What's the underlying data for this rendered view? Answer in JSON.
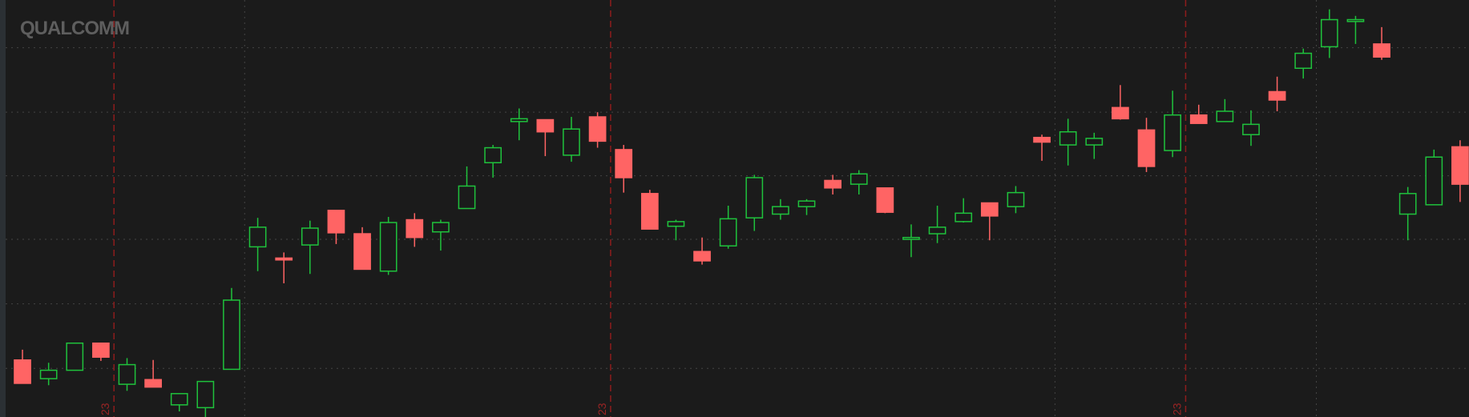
{
  "chart_data": {
    "type": "candlestick",
    "logo": "QUALCOMM",
    "up_color": "#1fc23c",
    "down_color": "#ff6464",
    "open": [
      61,
      41,
      50,
      79,
      35,
      40,
      13,
      10,
      51,
      182,
      170,
      184,
      221,
      196,
      156,
      211,
      198,
      223,
      272,
      316,
      318,
      280,
      321,
      286,
      239,
      204,
      177,
      183,
      213,
      217,
      225,
      253,
      249,
      245,
      190,
      196,
      209,
      229,
      225,
      299,
      291,
      291,
      331,
      307,
      285,
      323,
      316,
      302,
      348,
      373,
      396,
      423,
      399,
      217,
      227,
      289
    ],
    "high": [
      72,
      58,
      79,
      79,
      63,
      61,
      25,
      38,
      138,
      213,
      176,
      210,
      221,
      203,
      214,
      218,
      211,
      268,
      291,
      330,
      318,
      321,
      326,
      291,
      243,
      211,
      192,
      226,
      259,
      233,
      233,
      259,
      264,
      245,
      206,
      226,
      234,
      229,
      247,
      302,
      319,
      304,
      355,
      320,
      349,
      334,
      340,
      328,
      364,
      394,
      436,
      429,
      417,
      246,
      286,
      296
    ],
    "low": [
      36,
      34,
      50,
      60,
      28,
      32,
      6,
      0,
      51,
      156,
      143,
      153,
      185,
      158,
      152,
      182,
      178,
      223,
      256,
      296,
      279,
      273,
      288,
      240,
      201,
      189,
      163,
      180,
      199,
      211,
      216,
      238,
      238,
      218,
      171,
      186,
      208,
      189,
      218,
      274,
      269,
      276,
      318,
      262,
      278,
      314,
      316,
      290,
      327,
      362,
      384,
      399,
      382,
      189,
      227,
      230
    ],
    "close": [
      36,
      50,
      79,
      64,
      56,
      32,
      25,
      38,
      125,
      203,
      168,
      202,
      197,
      158,
      208,
      192,
      208,
      247,
      288,
      319,
      305,
      308,
      295,
      256,
      201,
      209,
      167,
      212,
      256,
      225,
      231,
      245,
      260,
      219,
      192,
      203,
      218,
      215,
      240,
      294,
      305,
      298,
      319,
      268,
      323,
      314,
      327,
      313,
      339,
      389,
      425,
      425,
      385,
      239,
      278,
      249
    ],
    "xlim": [
      -0.86,
      55.34
    ],
    "ylim": [
      0,
      446
    ],
    "yticks": [
      52,
      121,
      190,
      258,
      326,
      395
    ],
    "xgrid": [
      8.5,
      39.5,
      49.5
    ],
    "markers": [
      {
        "x": 3.5,
        "label": "23"
      },
      {
        "x": 22.5,
        "label": "23"
      },
      {
        "x": 44.5,
        "label": "23"
      }
    ]
  }
}
